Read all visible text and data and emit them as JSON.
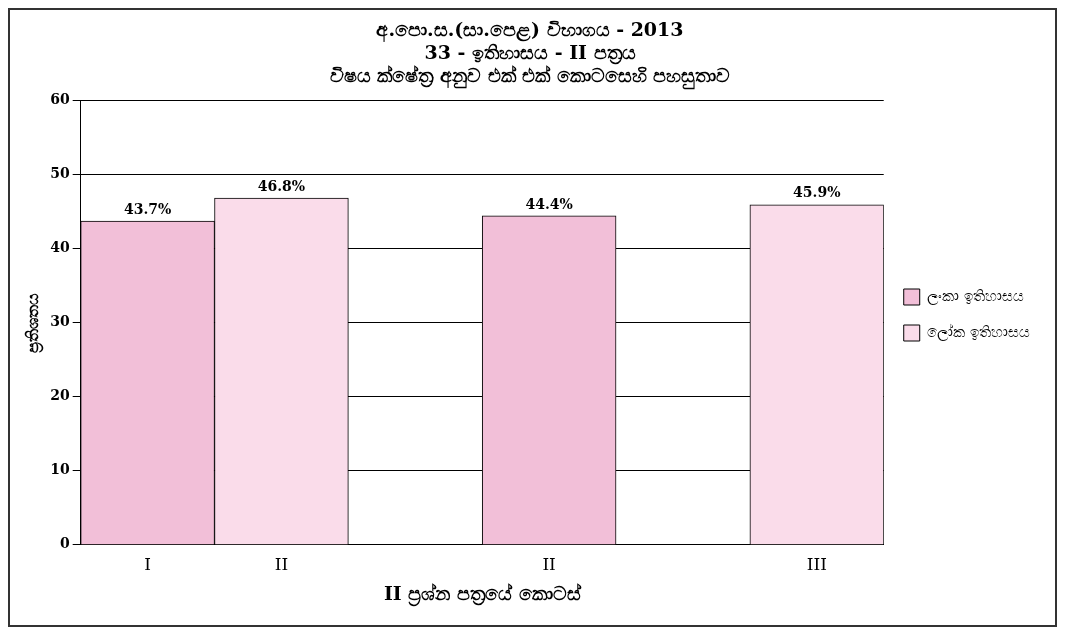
{
  "chart_data": {
    "type": "bar",
    "title": [
      "අ.පො.ස.(සා.පෙළ) විභාගය - 2013",
      "33 - ඉතිහාසය - II පත්‍රය",
      "විෂය ක්ෂේත්‍ර අනුව එක් එක් කොටසෙහි පහසුතාව"
    ],
    "xlabel": "II ප්‍රශ්න පත්‍රයේ කොටස්",
    "ylabel": "ප්‍රතිශතය",
    "categories": [
      "I",
      "II",
      null,
      "II",
      null,
      "III"
    ],
    "series": [
      {
        "name": "ලංකා ඉතිහාසය",
        "color": "#f2bfd8",
        "values": [
          43.7,
          null,
          null,
          44.4,
          null,
          null
        ],
        "value_labels": [
          "43.7%",
          null,
          null,
          "44.4%",
          null,
          null
        ]
      },
      {
        "name": "ලෝක ඉතිහාසය",
        "color": "#fadcea",
        "values": [
          null,
          46.8,
          null,
          null,
          null,
          45.9
        ],
        "value_labels": [
          null,
          "46.8%",
          null,
          null,
          null,
          "45.9%"
        ]
      }
    ],
    "ylim": [
      0,
      60
    ],
    "yticks": [
      0,
      10,
      20,
      30,
      40,
      50,
      60
    ],
    "grid": "y",
    "legend": "right"
  }
}
